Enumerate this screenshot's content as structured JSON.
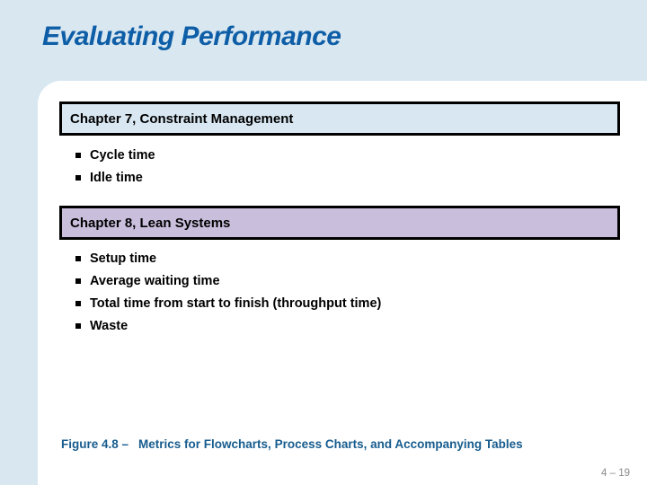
{
  "slide": {
    "title": "Evaluating Performance",
    "page_number": "4 – 19"
  },
  "sections": [
    {
      "header": "Chapter 7, Constraint Management",
      "fill_color": "#d8e7f2",
      "bullets": [
        "Cycle time",
        "Idle time"
      ]
    },
    {
      "header": "Chapter 8, Lean Systems",
      "fill_color": "#c9bfdd",
      "bullets": [
        "Setup time",
        "Average waiting time",
        "Total time from start to finish (throughput time)",
        "Waste"
      ]
    }
  ],
  "footer": {
    "figure_label": "Figure 4.8 –",
    "figure_caption": "Metrics for Flowcharts, Process Charts, and Accompanying Tables"
  },
  "colors": {
    "background": "#d9e7f0",
    "card": "#ffffff",
    "title_text": "#0e5ea7",
    "caption_text": "#175c8e",
    "box_border": "#000000",
    "chapter7_fill": "#d8e7f2",
    "chapter8_fill": "#c9bfdd",
    "page_number_text": "#8a8a8a"
  }
}
